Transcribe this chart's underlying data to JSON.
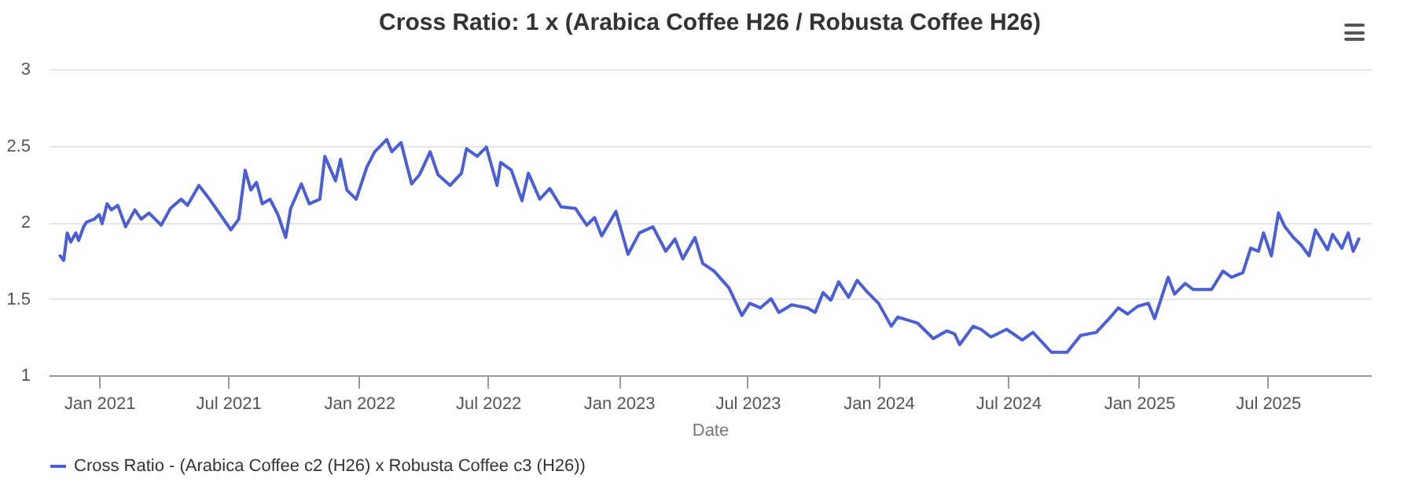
{
  "chart_data": {
    "type": "line",
    "title": "Cross Ratio: 1 x (Arabica Coffee H26 / Robusta Coffee H26)",
    "xlabel": "Date",
    "legend": "bottom",
    "grid": "y",
    "marker": "none",
    "line_style": "solid",
    "xlim": [
      "2020-10-22",
      "2025-11-23"
    ],
    "xticks": [
      {
        "value": "2021-01-01",
        "label": "Jan 2021"
      },
      {
        "value": "2021-07-01",
        "label": "Jul 2021"
      },
      {
        "value": "2022-01-01",
        "label": "Jan 2022"
      },
      {
        "value": "2022-07-01",
        "label": "Jul 2022"
      },
      {
        "value": "2023-01-01",
        "label": "Jan 2023"
      },
      {
        "value": "2023-07-01",
        "label": "Jul 2023"
      },
      {
        "value": "2024-01-01",
        "label": "Jan 2024"
      },
      {
        "value": "2024-07-01",
        "label": "Jul 2024"
      },
      {
        "value": "2025-01-01",
        "label": "Jan 2025"
      },
      {
        "value": "2025-07-01",
        "label": "Jul 2025"
      }
    ],
    "ylim": [
      1,
      3
    ],
    "yticks": [
      1,
      1.5,
      2,
      2.5,
      3
    ],
    "x": [
      "2020-11-07",
      "2020-11-12",
      "2020-11-17",
      "2020-11-22",
      "2020-11-29",
      "2020-12-03",
      "2020-12-10",
      "2020-12-14",
      "2020-12-25",
      "2021-01-01",
      "2021-01-05",
      "2021-01-12",
      "2021-01-18",
      "2021-01-27",
      "2021-02-07",
      "2021-02-20",
      "2021-03-01",
      "2021-03-12",
      "2021-03-29",
      "2021-04-11",
      "2021-04-26",
      "2021-05-05",
      "2021-05-21",
      "2021-06-05",
      "2021-06-20",
      "2021-07-05",
      "2021-07-16",
      "2021-07-25",
      "2021-08-02",
      "2021-08-10",
      "2021-08-18",
      "2021-08-29",
      "2021-09-09",
      "2021-09-20",
      "2021-09-27",
      "2021-10-12",
      "2021-10-23",
      "2021-11-07",
      "2021-11-14",
      "2021-11-29",
      "2021-12-06",
      "2021-12-15",
      "2021-12-28",
      "2022-01-12",
      "2022-01-23",
      "2022-02-09",
      "2022-02-16",
      "2022-03-01",
      "2022-03-16",
      "2022-03-27",
      "2022-04-11",
      "2022-04-22",
      "2022-05-09",
      "2022-05-25",
      "2022-06-01",
      "2022-06-16",
      "2022-06-29",
      "2022-07-14",
      "2022-07-19",
      "2022-08-03",
      "2022-08-18",
      "2022-08-27",
      "2022-09-12",
      "2022-09-26",
      "2022-10-12",
      "2022-11-01",
      "2022-11-17",
      "2022-11-28",
      "2022-12-08",
      "2022-12-28",
      "2023-01-14",
      "2023-01-30",
      "2023-02-18",
      "2023-03-08",
      "2023-03-21",
      "2023-04-01",
      "2023-04-18",
      "2023-04-29",
      "2023-05-15",
      "2023-06-05",
      "2023-06-23",
      "2023-07-04",
      "2023-07-19",
      "2023-08-03",
      "2023-08-14",
      "2023-09-01",
      "2023-09-23",
      "2023-10-04",
      "2023-10-15",
      "2023-10-26",
      "2023-11-06",
      "2023-11-20",
      "2023-12-02",
      "2023-12-17",
      "2024-01-01",
      "2024-01-19",
      "2024-01-28",
      "2024-02-25",
      "2024-03-18",
      "2024-04-06",
      "2024-04-17",
      "2024-04-24",
      "2024-05-13",
      "2024-05-24",
      "2024-06-07",
      "2024-06-29",
      "2024-07-21",
      "2024-08-05",
      "2024-08-31",
      "2024-09-22",
      "2024-10-11",
      "2024-11-02",
      "2024-11-20",
      "2024-12-03",
      "2024-12-16",
      "2024-12-30",
      "2025-01-14",
      "2025-01-23",
      "2025-02-11",
      "2025-02-20",
      "2025-03-07",
      "2025-03-18",
      "2025-04-13",
      "2025-04-29",
      "2025-05-11",
      "2025-05-27",
      "2025-06-07",
      "2025-06-18",
      "2025-06-25",
      "2025-07-06",
      "2025-07-16",
      "2025-07-25",
      "2025-08-06",
      "2025-08-17",
      "2025-08-28",
      "2025-09-06",
      "2025-09-23",
      "2025-09-30",
      "2025-10-13",
      "2025-10-22",
      "2025-10-29",
      "2025-11-06"
    ],
    "series": [
      {
        "name": "Cross Ratio - (Arabica Coffee c2 (H26) x Robusta Coffee c3 (H26))",
        "color": "#4a5fd6",
        "values": [
          1.78,
          1.75,
          1.93,
          1.87,
          1.93,
          1.88,
          1.97,
          2.0,
          2.02,
          2.05,
          1.99,
          2.12,
          2.08,
          2.11,
          1.97,
          2.08,
          2.02,
          2.06,
          1.98,
          2.09,
          2.15,
          2.11,
          2.24,
          2.15,
          2.05,
          1.95,
          2.02,
          2.34,
          2.21,
          2.26,
          2.12,
          2.15,
          2.05,
          1.9,
          2.09,
          2.25,
          2.12,
          2.15,
          2.43,
          2.27,
          2.41,
          2.21,
          2.15,
          2.36,
          2.46,
          2.54,
          2.46,
          2.52,
          2.25,
          2.31,
          2.46,
          2.31,
          2.24,
          2.32,
          2.48,
          2.43,
          2.49,
          2.24,
          2.39,
          2.34,
          2.14,
          2.32,
          2.15,
          2.22,
          2.1,
          2.09,
          1.98,
          2.03,
          1.91,
          2.07,
          1.79,
          1.93,
          1.97,
          1.81,
          1.89,
          1.76,
          1.9,
          1.73,
          1.68,
          1.57,
          1.39,
          1.47,
          1.44,
          1.5,
          1.41,
          1.46,
          1.44,
          1.41,
          1.54,
          1.49,
          1.61,
          1.51,
          1.62,
          1.54,
          1.47,
          1.32,
          1.38,
          1.34,
          1.24,
          1.29,
          1.27,
          1.2,
          1.32,
          1.3,
          1.25,
          1.3,
          1.23,
          1.28,
          1.15,
          1.15,
          1.26,
          1.28,
          1.37,
          1.44,
          1.4,
          1.45,
          1.47,
          1.37,
          1.64,
          1.53,
          1.6,
          1.56,
          1.56,
          1.68,
          1.64,
          1.67,
          1.83,
          1.81,
          1.93,
          1.78,
          2.06,
          1.97,
          1.9,
          1.85,
          1.78,
          1.95,
          1.82,
          1.92,
          1.83,
          1.93,
          1.81,
          1.89
        ]
      }
    ]
  }
}
